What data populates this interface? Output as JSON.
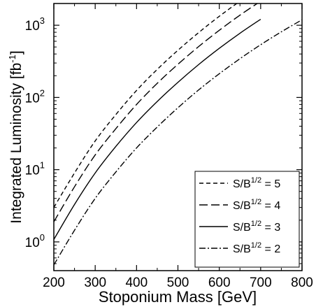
{
  "chart_data": {
    "type": "line",
    "title": "",
    "xlabel": "Stoponium Mass  [GeV]",
    "ylabel": "Integrated Luminosity  [fb",
    "ylabel_sup": "-1",
    "ylabel_end": "]",
    "xlim": [
      200,
      800
    ],
    "ylim": [
      0.4,
      2000
    ],
    "yscale": "log",
    "x_ticks": [
      200,
      300,
      400,
      500,
      600,
      700,
      800
    ],
    "x_tick_labels": [
      "200",
      "300",
      "400",
      "500",
      "600",
      "700",
      "800"
    ],
    "y_ticks": [
      1,
      10,
      100,
      1000
    ],
    "y_tick_bases": [
      "10",
      "10",
      "10",
      "10"
    ],
    "y_tick_exps": [
      "0",
      "1",
      "2",
      "3"
    ],
    "grid": false,
    "legend_position": "bottom-right",
    "series": [
      {
        "name": "S/B^1/2 = 5",
        "legend_prefix": "S/B",
        "legend_sup": "1/2",
        "legend_suffix": " = 5",
        "dash": "dashed",
        "x": [
          200,
          250,
          300,
          350,
          400,
          450,
          500,
          550,
          600,
          650,
          700
        ],
        "y": [
          3.0,
          9.0,
          25,
          58,
          125,
          245,
          450,
          790,
          1330,
          2150,
          3350
        ]
      },
      {
        "name": "S/B^1/2 = 4",
        "legend_prefix": "S/B",
        "legend_sup": "1/2",
        "legend_suffix": " = 4",
        "dash": "long-dashed",
        "x": [
          200,
          250,
          300,
          350,
          400,
          450,
          500,
          550,
          600,
          650,
          700
        ],
        "y": [
          1.9,
          5.8,
          16,
          37,
          80,
          157,
          288,
          506,
          851,
          1380,
          2150
        ]
      },
      {
        "name": "S/B^1/2 = 3",
        "legend_prefix": "S/B",
        "legend_sup": "1/2",
        "legend_suffix": " = 3",
        "dash": "solid",
        "x": [
          200,
          250,
          300,
          350,
          400,
          450,
          500,
          550,
          600,
          650,
          700
        ],
        "y": [
          1.08,
          3.3,
          9.0,
          21,
          45,
          88,
          162,
          285,
          479,
          775,
          1210
        ]
      },
      {
        "name": "S/B^1/2 = 2",
        "legend_prefix": "S/B",
        "legend_sup": "1/2",
        "legend_suffix": " = 2",
        "dash": "dash-dot",
        "x": [
          200,
          250,
          300,
          350,
          400,
          450,
          500,
          550,
          600,
          650,
          700,
          750,
          800
        ],
        "y": [
          0.48,
          1.45,
          4.0,
          9.3,
          20,
          39,
          72,
          127,
          213,
          344,
          537,
          811,
          1190
        ]
      }
    ]
  }
}
